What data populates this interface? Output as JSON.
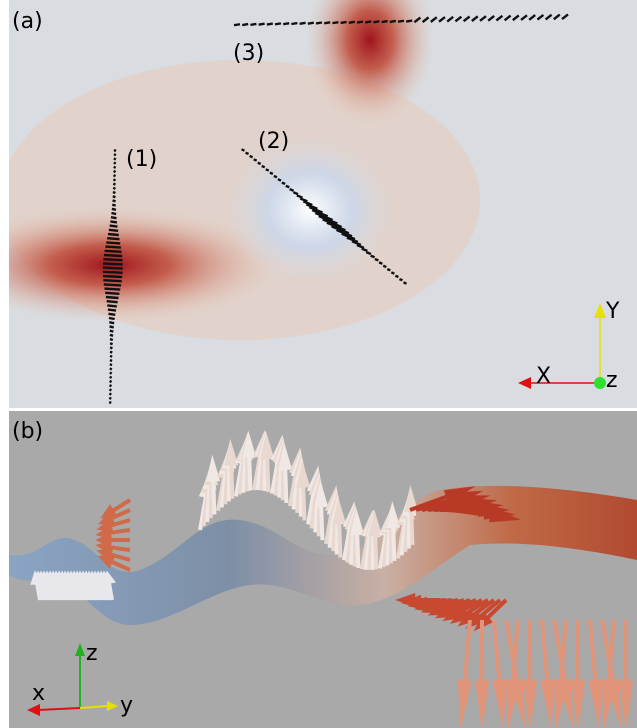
{
  "panel_a": {
    "label": "(a)",
    "annotations": [
      "(1)",
      "(2)",
      "(3)"
    ],
    "axes": {
      "y": "Y",
      "x": "X",
      "z": "z"
    }
  },
  "panel_b": {
    "label": "(b)",
    "axes": {
      "z": "z",
      "x": "x",
      "y": "y"
    }
  }
}
